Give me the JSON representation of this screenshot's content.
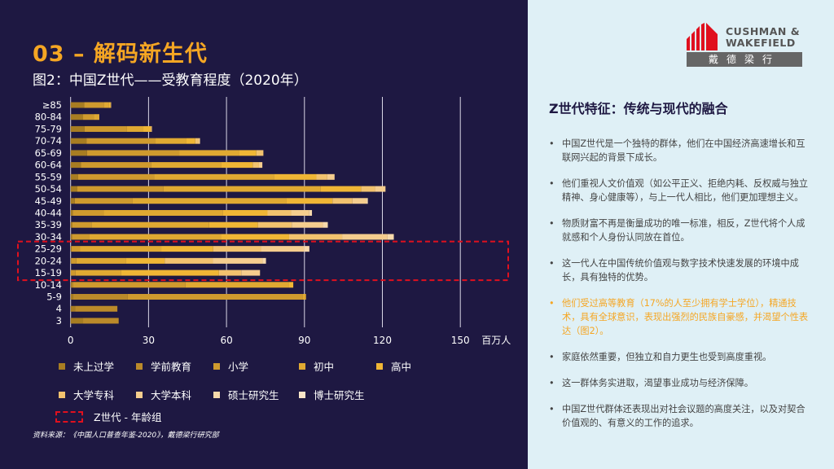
{
  "header": {
    "title": "03 – 解码新生代",
    "subtitle": "图2：中国Z世代——受教育程度（2020年）"
  },
  "logo": {
    "line1": "CUSHMAN &",
    "line2": "WAKEFIELD",
    "cn": "戴德梁行",
    "color": "#e0101e"
  },
  "chart_data": {
    "type": "bar",
    "orientation": "horizontal",
    "stacked": true,
    "title": "图2：中国Z世代——受教育程度（2020年）",
    "xlabel": "百万人",
    "xlim": [
      0,
      150
    ],
    "xticks": [
      0,
      30,
      60,
      90,
      120,
      150
    ],
    "grid": true,
    "categories": [
      "≥85",
      "80-84",
      "75-79",
      "70-74",
      "65-69",
      "60-64",
      "55-59",
      "50-54",
      "45-49",
      "40-44",
      "35-39",
      "30-34",
      "25-29",
      "20-24",
      "15-19",
      "10-14",
      "5-9",
      "4",
      "3"
    ],
    "series": [
      {
        "name": "未上过学",
        "color": "#a87d22",
        "values": [
          5.2,
          4.8,
          5.4,
          6.1,
          6.3,
          4.0,
          2.9,
          2.6,
          1.6,
          0.8,
          0.6,
          0.5,
          0.3,
          0.2,
          0,
          0.3,
          1.0,
          1.7,
          4.8
        ]
      },
      {
        "name": "学前教育",
        "color": "#bb8a2a",
        "values": [
          0,
          0,
          0,
          0,
          0,
          0,
          0,
          0,
          0,
          0,
          0,
          0,
          0,
          0,
          0,
          0.7,
          21.0,
          16.3,
          13.7
        ]
      },
      {
        "name": "小学",
        "color": "#cf9a2e",
        "values": [
          7.5,
          4.1,
          16.3,
          26.6,
          35.5,
          27.1,
          29.2,
          33.2,
          22.3,
          12.0,
          7.4,
          6.8,
          3.4,
          2.0,
          1.9,
          43.2,
          67.2,
          0,
          0
        ]
      },
      {
        "name": "初中",
        "color": "#e0a932",
        "values": [
          1.9,
          1.3,
          6.3,
          11.9,
          23.0,
          26.8,
          46.1,
          60.5,
          59.0,
          45.7,
          45.3,
          50.5,
          31.2,
          19.0,
          17.6,
          39.9,
          1.4,
          0,
          0
        ]
      },
      {
        "name": "高中",
        "color": "#f0b635",
        "values": [
          0.8,
          0.8,
          2.9,
          3.4,
          6.7,
          12.2,
          16.4,
          15.5,
          17.9,
          17.3,
          18.8,
          26.3,
          20.0,
          15.0,
          37.6,
          1.6,
          0,
          0,
          0
        ]
      },
      {
        "name": "大学专科",
        "color": "#f2c26e",
        "values": [
          0.2,
          0,
          0.4,
          1.3,
          2.7,
          2.4,
          4.2,
          5.4,
          7.7,
          9.1,
          13.0,
          20.4,
          18.4,
          18.6,
          8.6,
          0,
          0,
          0,
          0
        ]
      },
      {
        "name": "大学本科",
        "color": "#f5cd8e",
        "values": [
          0,
          0,
          0,
          0.5,
          0,
          1.3,
          2.8,
          4.0,
          5.4,
          7.0,
          12.0,
          17.5,
          16.5,
          19.1,
          7.2,
          0,
          0,
          0,
          0
        ]
      },
      {
        "name": "硕士研究生",
        "color": "#f7d9ab",
        "values": [
          0,
          0,
          0,
          0,
          0,
          0,
          0,
          0,
          0.5,
          1.0,
          1.9,
          2.4,
          2.1,
          1.3,
          0,
          0,
          0,
          0,
          0
        ]
      },
      {
        "name": "博士研究生",
        "color": "#f9e5c8",
        "values": [
          0,
          0,
          0,
          0,
          0,
          0,
          0,
          0,
          0,
          0,
          0,
          0,
          0,
          0,
          0,
          0,
          0,
          0,
          0
        ]
      }
    ],
    "highlight": {
      "label": "Z世代 - 年龄组",
      "categories": [
        "25-29",
        "20-24",
        "15-19"
      ],
      "color": "#e0101e"
    }
  },
  "source": "资料来源：《中国人口普查年鉴-2020》，戴德梁行研究部",
  "panel": {
    "heading": "Z世代特征：传统与现代的融合",
    "bullets": [
      {
        "text": "中国Z世代是一个独特的群体，他们在中国经济高速增长和互联网兴起的背景下成长。"
      },
      {
        "text": "他们重视人文价值观（如公平正义、拒绝内耗、反权威与独立精神、身心健康等），与上一代人相比，他们更加理想主义。"
      },
      {
        "text": "物质财富不再是衡量成功的唯一标准，相反，Z世代将个人成就感和个人身份认同放在首位。"
      },
      {
        "text": "这一代人在中国传统价值观与数字技术快速发展的环境中成长，具有独特的优势。"
      },
      {
        "text": "他们受过高等教育（17%的人至少拥有学士学位），精通技术，具有全球意识，表现出强烈的民族自豪感，并渴望个性表达（图2）。",
        "highlight": true
      },
      {
        "text": "家庭依然重要，但独立和自力更生也受到高度重视。"
      },
      {
        "text": "这一群体务实进取，渴望事业成功与经济保障。"
      },
      {
        "text": "中国Z世代群体还表现出对社会议题的高度关注，以及对契合价值观的、有意义的工作的追求。"
      }
    ]
  },
  "colors": {
    "left_bg": "#1e1842",
    "right_bg": "#dff0f6",
    "accent": "#f5a623"
  }
}
